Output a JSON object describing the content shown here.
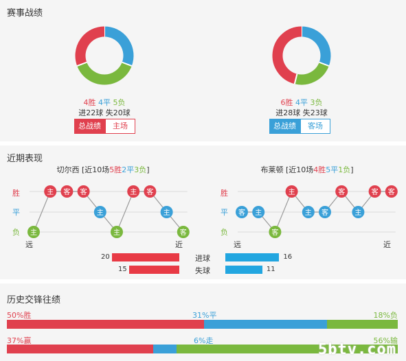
{
  "sections": {
    "record_title": "赛事战绩",
    "recent_title": "近期表现",
    "history_title": "历史交锋往绩"
  },
  "colors": {
    "win": "#e0404e",
    "draw": "#3aa0d8",
    "loss": "#7ab83e",
    "home": "#e0404e",
    "away": "#3aa0d8"
  },
  "home_record": {
    "wins": "4胜",
    "draws": "4平",
    "losses": "5负",
    "goals": "进22球",
    "conceded": "失20球",
    "tab_total": "总战绩",
    "tab_venue": "主场",
    "donut": {
      "wins": 4,
      "draws": 4,
      "losses": 5
    }
  },
  "away_record": {
    "wins": "6胜",
    "draws": "4平",
    "losses": "3负",
    "goals": "进28球",
    "conceded": "失23球",
    "tab_total": "总战绩",
    "tab_venue": "客场",
    "donut": {
      "wins": 6,
      "draws": 4,
      "losses": 3
    }
  },
  "recent": {
    "home": {
      "title_pre": "切尔西 [近10场",
      "w": "5胜",
      "d": "2平",
      "l": "3负",
      "title_post": "]",
      "axis_win": "胜",
      "axis_draw": "平",
      "axis_loss": "负",
      "far": "远",
      "near": "近",
      "results": [
        "L",
        "W",
        "W",
        "W",
        "D",
        "L",
        "W",
        "W",
        "D",
        "L"
      ],
      "venues": [
        "主",
        "主",
        "客",
        "客",
        "主",
        "主",
        "主",
        "客",
        "主",
        "客"
      ]
    },
    "away": {
      "title_pre": "布莱顿 [近10场",
      "w": "4胜",
      "d": "5平",
      "l": "1负",
      "title_post": "]",
      "axis_win": "胜",
      "axis_draw": "平",
      "axis_loss": "负",
      "far": "远",
      "near": "近",
      "results": [
        "D",
        "D",
        "L",
        "W",
        "D",
        "D",
        "W",
        "D",
        "W",
        "W"
      ],
      "venues": [
        "客",
        "主",
        "客",
        "主",
        "主",
        "客",
        "客",
        "主",
        "客",
        "客"
      ]
    },
    "goals_label": "进球",
    "conceded_label": "失球",
    "home_goals": 20,
    "home_conceded": 15,
    "away_goals": 16,
    "away_conceded": 11
  },
  "history": {
    "row1": {
      "win_label": "50%胜",
      "draw_label": "31%平",
      "loss_label": "18%负",
      "win": 50,
      "draw": 31,
      "loss": 18
    },
    "row2": {
      "win_label": "37%赢",
      "draw_label": "6%走",
      "loss_label": "56%输",
      "win": 37,
      "draw": 6,
      "loss": 56
    }
  },
  "watermark": "5btv.com"
}
